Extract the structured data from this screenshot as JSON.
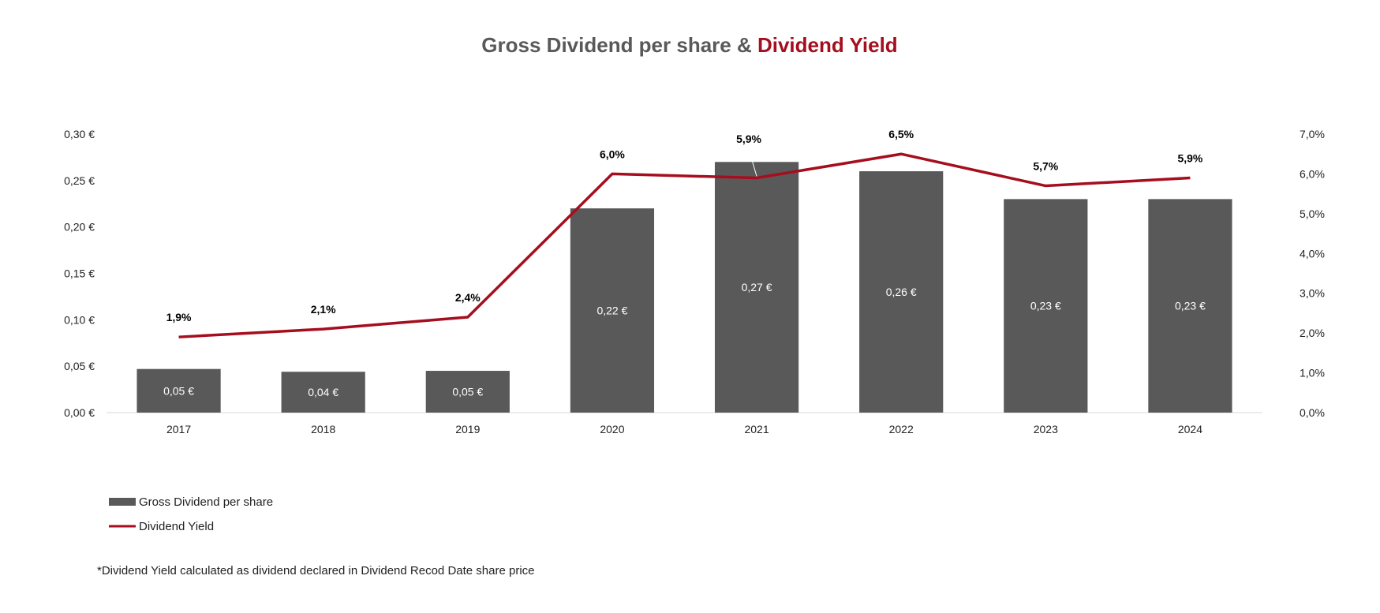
{
  "chart_data": {
    "type": "bar",
    "title_part1": "Gross Dividend per share & ",
    "title_part2": "Dividend Yield",
    "categories": [
      "2017",
      "2018",
      "2019",
      "2020",
      "2021",
      "2022",
      "2023",
      "2024"
    ],
    "series": [
      {
        "name": "Gross Dividend per share",
        "type": "bar",
        "axis": "left",
        "values": [
          0.047,
          0.044,
          0.045,
          0.22,
          0.27,
          0.26,
          0.23,
          0.23
        ],
        "labels": [
          "0,05 €",
          "0,04 €",
          "0,05 €",
          "0,22 €",
          "0,27 €",
          "0,26 €",
          "0,23 €",
          "0,23 €"
        ],
        "color": "#595959"
      },
      {
        "name": "Dividend Yield",
        "type": "line",
        "axis": "right",
        "values": [
          1.9,
          2.1,
          2.4,
          6.0,
          5.9,
          6.5,
          5.7,
          5.9
        ],
        "labels": [
          "1,9%",
          "2,1%",
          "2,4%",
          "6,0%",
          "5,9%",
          "6,5%",
          "5,7%",
          "5,9%"
        ],
        "color": "#a50e1e"
      }
    ],
    "y_left": {
      "ylim": [
        0,
        0.3
      ],
      "ticks": [
        0,
        0.05,
        0.1,
        0.15,
        0.2,
        0.25,
        0.3
      ],
      "tick_labels": [
        "0,00 €",
        "0,05 €",
        "0,10 €",
        "0,15 €",
        "0,20 €",
        "0,25 €",
        "0,30 €"
      ]
    },
    "y_right": {
      "ylim": [
        0,
        7
      ],
      "ticks": [
        0,
        1,
        2,
        3,
        4,
        5,
        6,
        7
      ],
      "tick_labels": [
        "0,0%",
        "1,0%",
        "2,0%",
        "3,0%",
        "4,0%",
        "5,0%",
        "6,0%",
        "7,0%"
      ]
    },
    "grid": false,
    "legend_position": "bottom-left",
    "footnote": "*Dividend Yield calculated as dividend declared in Dividend Recod  Date share price"
  }
}
